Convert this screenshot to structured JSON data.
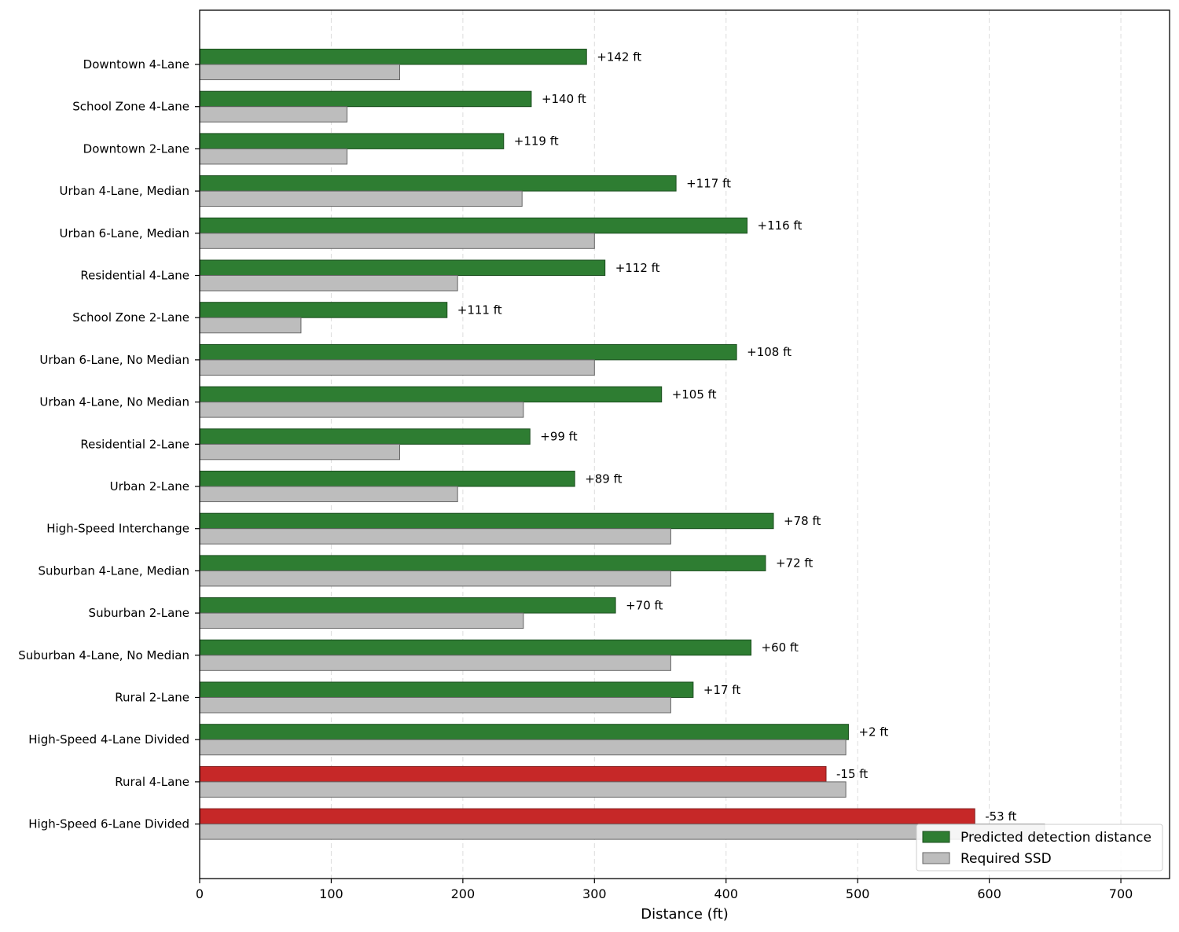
{
  "chart_data": {
    "type": "bar",
    "orientation": "horizontal",
    "xlabel": "Distance (ft)",
    "ylabel": "",
    "xlim": [
      0,
      737
    ],
    "xticks": [
      0,
      100,
      200,
      300,
      400,
      500,
      600,
      700
    ],
    "grid": "x-dashed",
    "legend_position": "bottom-right",
    "categories": [
      "Downtown 4-Lane",
      "School Zone 4-Lane",
      "Downtown 2-Lane",
      "Urban 4-Lane, Median",
      "Urban 6-Lane, Median",
      "Residential 4-Lane",
      "School Zone 2-Lane",
      "Urban 6-Lane, No Median",
      "Urban 4-Lane, No Median",
      "Residential 2-Lane",
      "Urban 2-Lane",
      "High-Speed Interchange",
      "Suburban 4-Lane, Median",
      "Suburban 2-Lane",
      "Suburban 4-Lane, No Median",
      "Rural 2-Lane",
      "High-Speed 4-Lane Divided",
      "Rural 4-Lane",
      "High-Speed 6-Lane Divided"
    ],
    "series": [
      {
        "name": "Predicted detection distance",
        "color": "#2e7d32",
        "negative_color": "#c62828",
        "values": [
          294,
          252,
          231,
          362,
          416,
          308,
          188,
          408,
          351,
          251,
          285,
          436,
          430,
          316,
          419,
          375,
          493,
          476,
          589
        ]
      },
      {
        "name": "Required SSD",
        "color": "#bdbdbd",
        "values": [
          152,
          112,
          112,
          245,
          300,
          196,
          77,
          300,
          246,
          152,
          196,
          358,
          358,
          246,
          358,
          358,
          491,
          491,
          642
        ]
      }
    ],
    "annotations": [
      "+142 ft",
      "+140 ft",
      "+119 ft",
      "+117 ft",
      "+116 ft",
      "+112 ft",
      "+111 ft",
      "+108 ft",
      "+105 ft",
      "+99 ft",
      "+89 ft",
      "+78 ft",
      "+72 ft",
      "+70 ft",
      "+60 ft",
      "+17 ft",
      "+2 ft",
      "-15 ft",
      "-53 ft"
    ]
  }
}
